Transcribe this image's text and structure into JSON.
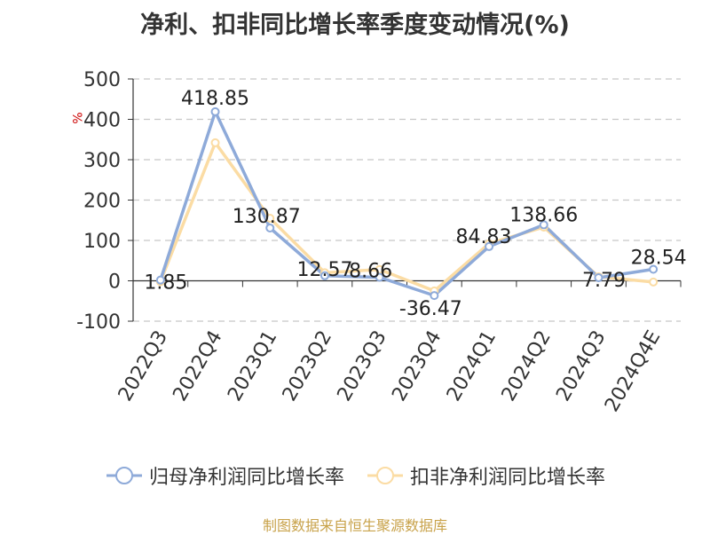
{
  "chart_data": {
    "type": "line",
    "title": "净利、扣非同比增长率季度变动情况(%)",
    "ylabel": "%",
    "xlabel": "",
    "ylim": [
      -100,
      500
    ],
    "yticks": [
      -100,
      0,
      100,
      200,
      300,
      400,
      500
    ],
    "grid": true,
    "legend_position": "bottom",
    "categories": [
      "2022Q3",
      "2022Q4",
      "2023Q1",
      "2023Q2",
      "2023Q3",
      "2023Q4",
      "2024Q1",
      "2024Q2",
      "2024Q3",
      "2024Q4E"
    ],
    "series": [
      {
        "name": "归母净利润同比增长率",
        "color": "#8eaad9",
        "values": [
          1.85,
          418.85,
          130.87,
          12.57,
          8.66,
          -36.47,
          84.83,
          138.66,
          7.79,
          28.54
        ],
        "labels": [
          "1.85",
          "418.85",
          "130.87",
          "12.57",
          "8.66",
          "-36.47",
          "84.83",
          "138.66",
          "7.79",
          "28.54"
        ]
      },
      {
        "name": "扣非净利润同比增长率",
        "color": "#fbdca4",
        "values": [
          -2,
          342,
          155,
          20,
          28,
          -25,
          92,
          133,
          10,
          -3
        ]
      }
    ]
  },
  "source": "制图数据来自恒生聚源数据库"
}
